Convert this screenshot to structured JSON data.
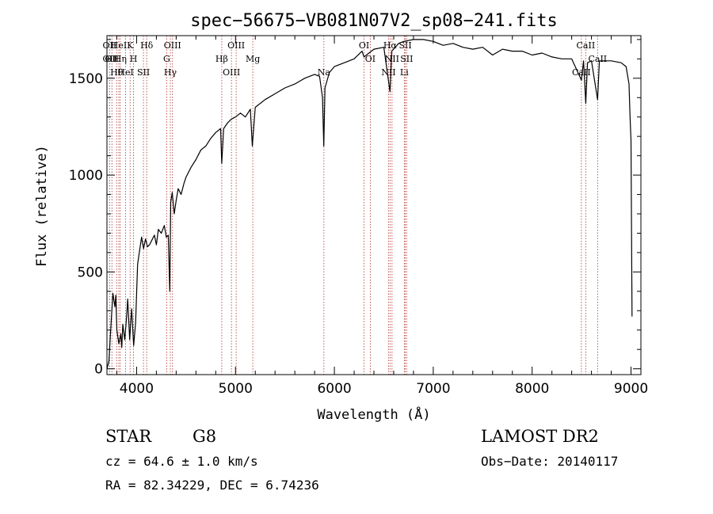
{
  "chart_data": {
    "type": "line",
    "title": "spec−56675−VB081N07V2_sp08−241.fits",
    "xlabel": "Wavelength (Å)",
    "ylabel": "Flux (relative)",
    "xlim": [
      3700,
      9100
    ],
    "ylim": [
      -30,
      1720
    ],
    "xticks": [
      4000,
      5000,
      6000,
      7000,
      8000,
      9000
    ],
    "yticks": [
      0,
      500,
      1000,
      1500
    ],
    "grid": false,
    "line_color": "#000000",
    "marker_line_color": "#b03030",
    "spectrum": [
      [
        3700,
        0
      ],
      [
        3720,
        40
      ],
      [
        3740,
        220
      ],
      [
        3760,
        390
      ],
      [
        3780,
        320
      ],
      [
        3790,
        380
      ],
      [
        3800,
        200
      ],
      [
        3820,
        130
      ],
      [
        3840,
        180
      ],
      [
        3850,
        110
      ],
      [
        3860,
        230
      ],
      [
        3880,
        150
      ],
      [
        3900,
        280
      ],
      [
        3910,
        360
      ],
      [
        3930,
        150
      ],
      [
        3940,
        240
      ],
      [
        3950,
        310
      ],
      [
        3970,
        120
      ],
      [
        3990,
        240
      ],
      [
        4010,
        540
      ],
      [
        4030,
        610
      ],
      [
        4050,
        680
      ],
      [
        4070,
        620
      ],
      [
        4090,
        670
      ],
      [
        4110,
        630
      ],
      [
        4130,
        640
      ],
      [
        4150,
        660
      ],
      [
        4180,
        690
      ],
      [
        4200,
        640
      ],
      [
        4220,
        720
      ],
      [
        4250,
        700
      ],
      [
        4280,
        740
      ],
      [
        4300,
        680
      ],
      [
        4320,
        690
      ],
      [
        4335,
        400
      ],
      [
        4345,
        860
      ],
      [
        4360,
        910
      ],
      [
        4380,
        800
      ],
      [
        4400,
        870
      ],
      [
        4420,
        930
      ],
      [
        4450,
        900
      ],
      [
        4480,
        960
      ],
      [
        4500,
        990
      ],
      [
        4550,
        1040
      ],
      [
        4600,
        1080
      ],
      [
        4650,
        1130
      ],
      [
        4700,
        1150
      ],
      [
        4750,
        1190
      ],
      [
        4800,
        1220
      ],
      [
        4850,
        1240
      ],
      [
        4861,
        1060
      ],
      [
        4880,
        1240
      ],
      [
        4920,
        1270
      ],
      [
        4960,
        1290
      ],
      [
        5000,
        1300
      ],
      [
        5050,
        1320
      ],
      [
        5100,
        1300
      ],
      [
        5150,
        1340
      ],
      [
        5170,
        1150
      ],
      [
        5200,
        1350
      ],
      [
        5300,
        1390
      ],
      [
        5400,
        1420
      ],
      [
        5500,
        1450
      ],
      [
        5600,
        1470
      ],
      [
        5700,
        1500
      ],
      [
        5800,
        1520
      ],
      [
        5850,
        1510
      ],
      [
        5880,
        1400
      ],
      [
        5893,
        1150
      ],
      [
        5905,
        1450
      ],
      [
        5950,
        1530
      ],
      [
        6000,
        1560
      ],
      [
        6100,
        1580
      ],
      [
        6200,
        1600
      ],
      [
        6280,
        1640
      ],
      [
        6300,
        1610
      ],
      [
        6400,
        1650
      ],
      [
        6500,
        1660
      ],
      [
        6563,
        1430
      ],
      [
        6580,
        1640
      ],
      [
        6650,
        1680
      ],
      [
        6700,
        1690
      ],
      [
        6800,
        1700
      ],
      [
        6900,
        1700
      ],
      [
        7000,
        1690
      ],
      [
        7100,
        1670
      ],
      [
        7200,
        1680
      ],
      [
        7300,
        1660
      ],
      [
        7400,
        1650
      ],
      [
        7500,
        1660
      ],
      [
        7600,
        1620
      ],
      [
        7700,
        1650
      ],
      [
        7800,
        1640
      ],
      [
        7900,
        1640
      ],
      [
        8000,
        1620
      ],
      [
        8100,
        1630
      ],
      [
        8200,
        1610
      ],
      [
        8300,
        1600
      ],
      [
        8400,
        1600
      ],
      [
        8498,
        1490
      ],
      [
        8520,
        1590
      ],
      [
        8542,
        1370
      ],
      [
        8560,
        1580
      ],
      [
        8600,
        1590
      ],
      [
        8662,
        1390
      ],
      [
        8680,
        1590
      ],
      [
        8800,
        1590
      ],
      [
        8900,
        1580
      ],
      [
        8950,
        1560
      ],
      [
        8980,
        1470
      ],
      [
        8990,
        1300
      ],
      [
        9000,
        1180
      ],
      [
        9010,
        270
      ]
    ],
    "line_markers": [
      {
        "x": 3727,
        "labels": [
          "OII",
          "OII"
        ]
      },
      {
        "x": 3750,
        "labels": [
          "OII"
        ]
      },
      {
        "x": 3798,
        "labels": [
          "Hθ"
        ]
      },
      {
        "x": 3820,
        "labels": [
          "HeI"
        ]
      },
      {
        "x": 3835,
        "labels": [
          "Hη"
        ]
      },
      {
        "x": 3889,
        "labels": [
          "HeI"
        ]
      },
      {
        "x": 3934,
        "labels": [
          "K"
        ]
      },
      {
        "x": 3969,
        "labels": [
          "H"
        ]
      },
      {
        "x": 4069,
        "labels": [
          "SII"
        ]
      },
      {
        "x": 4102,
        "labels": [
          "Hδ"
        ]
      },
      {
        "x": 4304,
        "labels": [
          "G"
        ]
      },
      {
        "x": 4341,
        "labels": [
          "Hγ"
        ]
      },
      {
        "x": 4363,
        "labels": [
          "OIII"
        ]
      },
      {
        "x": 4861,
        "labels": [
          "Hβ"
        ]
      },
      {
        "x": 4959,
        "labels": [
          "OIII"
        ]
      },
      {
        "x": 5007,
        "labels": [
          "OIII"
        ]
      },
      {
        "x": 5175,
        "labels": [
          "Mg"
        ]
      },
      {
        "x": 5894,
        "labels": [
          "Na"
        ]
      },
      {
        "x": 6300,
        "labels": [
          "OI"
        ]
      },
      {
        "x": 6363,
        "labels": [
          "OI"
        ]
      },
      {
        "x": 6548,
        "labels": [
          "NII"
        ]
      },
      {
        "x": 6563,
        "labels": [
          "Hα"
        ]
      },
      {
        "x": 6583,
        "labels": [
          "NII"
        ]
      },
      {
        "x": 6707,
        "labels": [
          "Li"
        ]
      },
      {
        "x": 6717,
        "labels": [
          "SII"
        ]
      },
      {
        "x": 6731,
        "labels": [
          "SII"
        ]
      },
      {
        "x": 8498,
        "labels": [
          "CaII"
        ]
      },
      {
        "x": 8542,
        "labels": [
          "CaII"
        ]
      },
      {
        "x": 8662,
        "labels": [
          "CaII"
        ]
      }
    ]
  },
  "info": {
    "class_label": "STAR",
    "subclass": "G8",
    "survey": "LAMOST DR2",
    "cz_line": "cz = 64.6 ± 1.0 km/s",
    "obs_date_line": "Obs−Date: 20140117",
    "radec_line": "RA =  82.34229, DEC =   6.74236"
  }
}
